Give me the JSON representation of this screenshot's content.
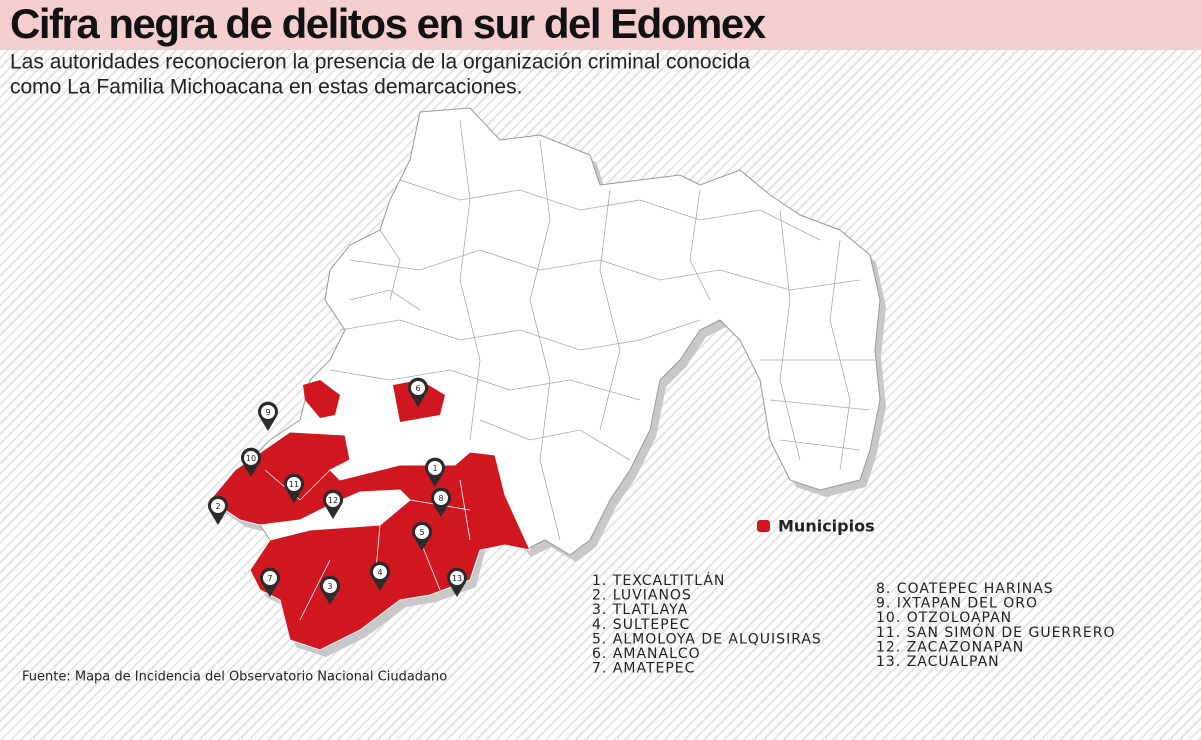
{
  "header": {
    "title": "Cifra negra de delitos en sur del Edomex",
    "subtitle_lines": [
      "Las autoridades reconocieron la presencia de la organización criminal conocida",
      "como La Familia Michoacana en estas demarcaciones."
    ]
  },
  "legend": {
    "label": "Municipios"
  },
  "pins": [
    "1",
    "2",
    "3",
    "4",
    "5",
    "6",
    "7",
    "8",
    "9",
    "10",
    "11",
    "12",
    "13"
  ],
  "list_left": [
    "1.  TEXCALTITLÁN",
    "2.  LUVIANOS",
    "3.  TLATLAYA",
    "4.  SULTEPEC",
    "5.  ALMOLOYA DE ALQUISIRAS",
    "6.  AMANALCO",
    "7.  AMATEPEC"
  ],
  "list_right": [
    "8.  COATEPEC HARINAS",
    "9.  IXTAPAN DEL ORO",
    "10. OTZOLOAPAN",
    "11. SAN SIMÓN DE GUERRERO",
    "12. ZACAZONAPAN",
    "13. ZACUALPAN"
  ],
  "source": "Fuente: Mapa de Incidencia del Observatorio Nacional Ciudadano"
}
